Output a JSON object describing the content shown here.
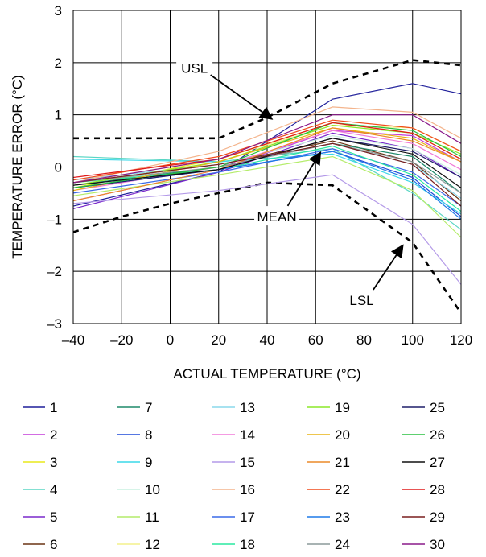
{
  "chart_data": {
    "type": "line",
    "title": "",
    "xlabel": "ACTUAL TEMPERATURE (°C)",
    "ylabel": "TEMPERATURE ERROR (°C)",
    "xlim": [
      -40,
      120
    ],
    "ylim": [
      -3,
      3
    ],
    "grid": true,
    "legend_position": "bottom",
    "x_ticks": [
      -40,
      -20,
      0,
      20,
      40,
      60,
      80,
      100,
      120
    ],
    "x_tick_labels": [
      "–40",
      "–20",
      "0",
      "20",
      "40",
      "60",
      "80",
      "100",
      "120"
    ],
    "y_ticks": [
      3,
      2,
      1,
      0,
      -1,
      -2,
      -3
    ],
    "y_tick_labels": [
      "3",
      "2",
      "1",
      "0",
      "–1",
      "–2",
      "–3"
    ],
    "x": [
      -40,
      20,
      67,
      100,
      120
    ],
    "limits": [
      {
        "name": "USL",
        "x": [
          -40,
          -20,
          0,
          20,
          40,
          67,
          100,
          120
        ],
        "y": [
          0.55,
          0.55,
          0.55,
          0.55,
          0.95,
          1.6,
          2.05,
          1.95
        ]
      },
      {
        "name": "LSL",
        "x": [
          -40,
          -20,
          0,
          20,
          40,
          67,
          100,
          120
        ],
        "y": [
          -1.25,
          -0.95,
          -0.7,
          -0.5,
          -0.3,
          -0.35,
          -1.45,
          -2.8
        ]
      }
    ],
    "annotations": [
      {
        "text": "USL",
        "x": 10,
        "y": 1.9,
        "arrow_to": [
          42,
          0.92
        ]
      },
      {
        "text": "MEAN",
        "x": 44,
        "y": -0.95,
        "arrow_to": [
          62,
          0.28
        ]
      },
      {
        "text": "LSL",
        "x": 79,
        "y": -2.55,
        "arrow_to": [
          96,
          -1.5
        ]
      }
    ],
    "series": [
      {
        "name": "1",
        "color": "#1f1f9a",
        "values": [
          -0.75,
          -0.1,
          1.3,
          1.6,
          1.4
        ]
      },
      {
        "name": "2",
        "color": "#c43cd8",
        "values": [
          -0.65,
          -0.05,
          0.7,
          0.6,
          0.1
        ]
      },
      {
        "name": "3",
        "color": "#e8e81a",
        "values": [
          -0.4,
          0.15,
          0.85,
          0.65,
          0.15
        ]
      },
      {
        "name": "4",
        "color": "#5ad6c4",
        "values": [
          0.2,
          0.1,
          0.35,
          -0.5,
          -1.2
        ]
      },
      {
        "name": "5",
        "color": "#7a28cc",
        "values": [
          -0.8,
          -0.1,
          0.65,
          0.35,
          -0.2
        ]
      },
      {
        "name": "6",
        "color": "#6a3414",
        "values": [
          -0.3,
          0.05,
          0.5,
          0.1,
          -0.65
        ]
      },
      {
        "name": "7",
        "color": "#1e8a6a",
        "values": [
          -0.35,
          0.0,
          0.45,
          0.2,
          -0.5
        ]
      },
      {
        "name": "8",
        "color": "#1e4ad8",
        "values": [
          -0.35,
          -0.05,
          0.3,
          -0.2,
          -0.95
        ]
      },
      {
        "name": "9",
        "color": "#3ad8e8",
        "values": [
          0.15,
          0.1,
          0.25,
          -0.3,
          -0.9
        ]
      },
      {
        "name": "10",
        "color": "#c8f0e0",
        "values": [
          -0.3,
          0.05,
          0.6,
          0.35,
          -0.15
        ]
      },
      {
        "name": "11",
        "color": "#b4ec6a",
        "values": [
          -0.55,
          -0.15,
          0.2,
          -0.45,
          -1.35
        ]
      },
      {
        "name": "12",
        "color": "#f4f08c",
        "values": [
          -0.3,
          0.15,
          0.8,
          0.75,
          0.3
        ]
      },
      {
        "name": "13",
        "color": "#8ad8ec",
        "values": [
          -0.25,
          0.05,
          0.45,
          0.05,
          -0.6
        ]
      },
      {
        "name": "14",
        "color": "#f07ad8",
        "values": [
          -0.45,
          0.0,
          0.7,
          0.45,
          -0.05
        ]
      },
      {
        "name": "15",
        "color": "#b49ae8",
        "values": [
          -0.7,
          -0.45,
          -0.15,
          -1.1,
          -2.25
        ]
      },
      {
        "name": "16",
        "color": "#f4b48c",
        "values": [
          -0.3,
          0.3,
          1.15,
          1.05,
          0.55
        ]
      },
      {
        "name": "17",
        "color": "#3a6ae8",
        "values": [
          -0.5,
          -0.1,
          0.35,
          -0.1,
          -0.75
        ]
      },
      {
        "name": "18",
        "color": "#2ae8a0",
        "values": [
          -0.3,
          -0.05,
          0.4,
          -0.15,
          -0.85
        ]
      },
      {
        "name": "19",
        "color": "#8ce828",
        "values": [
          -0.35,
          0.1,
          0.8,
          0.65,
          0.25
        ]
      },
      {
        "name": "20",
        "color": "#e8b414",
        "values": [
          -0.45,
          0.1,
          0.75,
          0.55,
          0.1
        ]
      },
      {
        "name": "21",
        "color": "#ec8a28",
        "values": [
          -0.65,
          -0.05,
          0.75,
          0.5,
          0.1
        ]
      },
      {
        "name": "22",
        "color": "#f04a1a",
        "values": [
          -0.25,
          0.2,
          0.9,
          0.75,
          0.3
        ]
      },
      {
        "name": "23",
        "color": "#1e7ae8",
        "values": [
          -0.4,
          -0.05,
          0.3,
          -0.25,
          -1.0
        ]
      },
      {
        "name": "24",
        "color": "#8c9a9a",
        "values": [
          -0.3,
          0.0,
          0.45,
          0.1,
          -0.5
        ]
      },
      {
        "name": "25",
        "color": "#1e1e6a",
        "values": [
          -0.4,
          -0.05,
          0.55,
          0.3,
          -0.2
        ]
      },
      {
        "name": "26",
        "color": "#28c040",
        "values": [
          -0.4,
          0.0,
          0.85,
          0.7,
          0.2
        ]
      },
      {
        "name": "27",
        "color": "#101010",
        "values": [
          -0.35,
          -0.05,
          0.55,
          0.25,
          -0.4
        ]
      },
      {
        "name": "28",
        "color": "#e01a1a",
        "values": [
          -0.2,
          0.15,
          0.85,
          0.65,
          0.15
        ]
      },
      {
        "name": "29",
        "color": "#7a1e1e",
        "values": [
          -0.3,
          0.05,
          0.45,
          0.05,
          -0.75
        ]
      },
      {
        "name": "30",
        "color": "#8a1a8a",
        "values": [
          -0.3,
          0.15,
          1.0,
          1.0,
          0.45
        ]
      }
    ]
  }
}
